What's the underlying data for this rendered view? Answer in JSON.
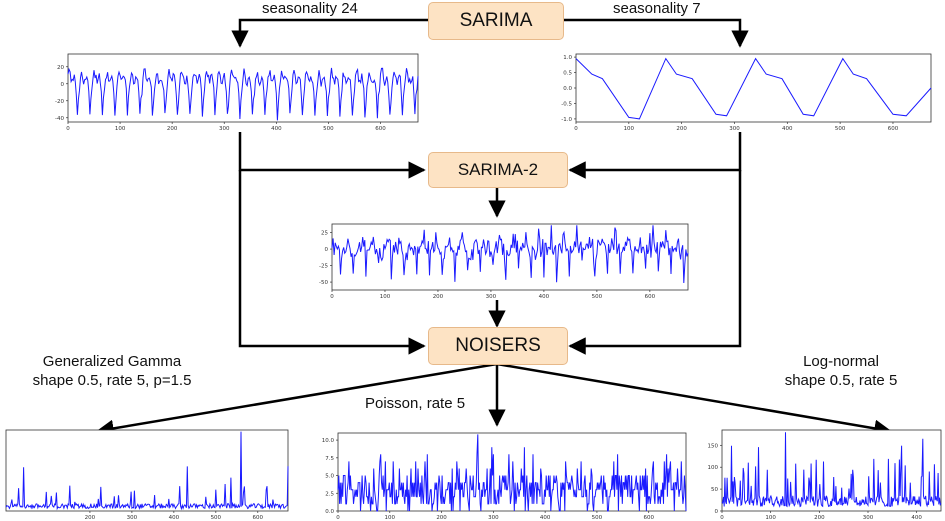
{
  "nodes": {
    "sarima": "SARIMA",
    "sarima2": "SARIMA-2",
    "noisers": "NOISERS"
  },
  "edge_labels": {
    "seasonality_left": "seasonality 24",
    "seasonality_right": "seasonality 7",
    "gamma_line1": "Generalized Gamma",
    "gamma_line2": "shape 0.5, rate 5, p=1.5",
    "poisson": "Poisson, rate 5",
    "lognormal_line1": "Log-normal",
    "lognormal_line2": "shape 0.5, rate 5"
  },
  "colors": {
    "series": "#1a1aff",
    "box_fill": "#fde3c4",
    "box_border": "#e7b98a"
  },
  "chart_data": [
    {
      "id": "seasonality24",
      "type": "line",
      "xlim": [
        0,
        672
      ],
      "ylim": [
        -45,
        35
      ],
      "xticks": [
        "0",
        "100",
        "200",
        "300",
        "400",
        "500",
        "600"
      ],
      "yticks": [
        "20",
        "0",
        "-20",
        "-40"
      ]
    },
    {
      "id": "seasonality7",
      "type": "line",
      "xlim": [
        0,
        672
      ],
      "ylim": [
        -1.1,
        1.1
      ],
      "xticks": [
        "0",
        "100",
        "200",
        "300",
        "400",
        "500",
        "600"
      ],
      "yticks": [
        "1.0",
        "0.5",
        "0.0",
        "-0.5",
        "-1.0"
      ]
    },
    {
      "id": "sarima2",
      "type": "line",
      "xlim": [
        0,
        672
      ],
      "ylim": [
        -62,
        38
      ],
      "xticks": [
        "0",
        "100",
        "200",
        "300",
        "400",
        "500",
        "600"
      ],
      "yticks": [
        "25",
        "0",
        "-25",
        "-50"
      ]
    },
    {
      "id": "gamma",
      "type": "line",
      "xlim": [
        0,
        672
      ],
      "ylim": [
        0,
        1
      ],
      "xticks": [
        "200",
        "300",
        "400",
        "500",
        "600"
      ],
      "yticks": []
    },
    {
      "id": "poisson",
      "type": "line",
      "xlim": [
        0,
        672
      ],
      "ylim": [
        0,
        11
      ],
      "xticks": [
        "0",
        "100",
        "200",
        "300",
        "400",
        "500",
        "600"
      ],
      "yticks": [
        "10.0",
        "7.5",
        "5.0",
        "2.5",
        "0.0"
      ]
    },
    {
      "id": "lognormal",
      "type": "line",
      "xlim": [
        0,
        450
      ],
      "ylim": [
        0,
        185
      ],
      "xticks": [
        "0",
        "100",
        "200",
        "300",
        "400"
      ],
      "yticks": [
        "150",
        "100",
        "50",
        "0"
      ]
    }
  ]
}
